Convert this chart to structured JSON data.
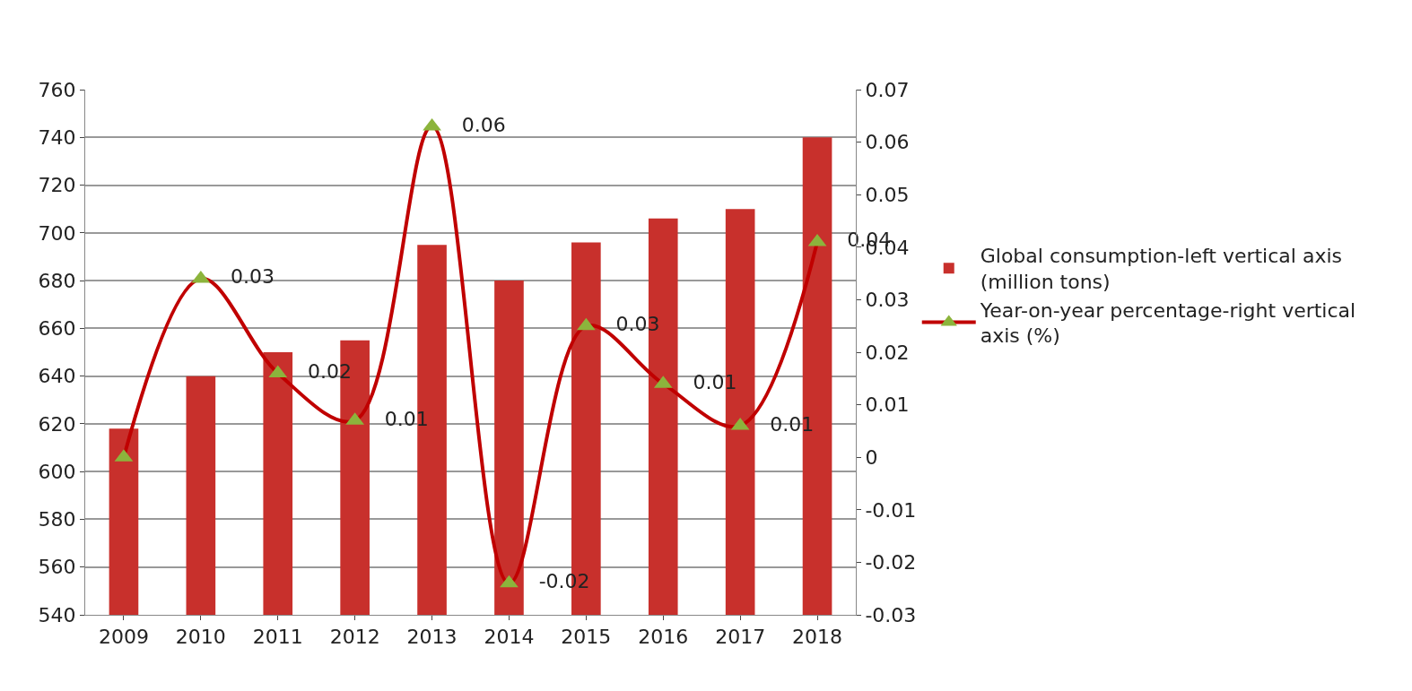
{
  "chart_data": {
    "type": "bar",
    "categories": [
      "2009",
      "2010",
      "2011",
      "2012",
      "2013",
      "2014",
      "2015",
      "2016",
      "2017",
      "2018"
    ],
    "series": [
      {
        "name": "Global consumption-left vertical axis (million tons)",
        "color": "#c8302c",
        "values": [
          618,
          640,
          650,
          655,
          695,
          680,
          696,
          706,
          710,
          740
        ]
      },
      {
        "name": "Year-on-year percentage-right vertical axis (%)",
        "type": "line",
        "axis": "y2",
        "color": "#c00000",
        "marker": "triangle",
        "colors": [
          "#8cb43c",
          "#8cb43c",
          "#8cb43c",
          "#8cb43c",
          "#8cb43c",
          "#8cb43c",
          "#8cb43c",
          "#8cb43c",
          "#8cb43c",
          "#8cb43c"
        ],
        "values": [
          0.0,
          0.034,
          0.016,
          0.007,
          0.063,
          -0.024,
          0.025,
          0.014,
          0.006,
          0.041
        ],
        "value_labels": [
          null,
          "0.03",
          "0.02",
          "0.01",
          "0.06",
          "-0.02",
          "0.03",
          "0.01",
          "0.01",
          "0.04"
        ]
      }
    ],
    "ylim": [
      540,
      760
    ],
    "yticks": [
      540,
      560,
      580,
      600,
      620,
      640,
      660,
      680,
      700,
      720,
      740,
      760
    ],
    "y2lim": [
      -0.03,
      0.07
    ],
    "y2ticks": [
      -0.03,
      -0.02,
      -0.01,
      0,
      0.01,
      0.02,
      0.03,
      0.04,
      0.05,
      0.06,
      0.07
    ],
    "grid": "y",
    "legend": "right"
  }
}
